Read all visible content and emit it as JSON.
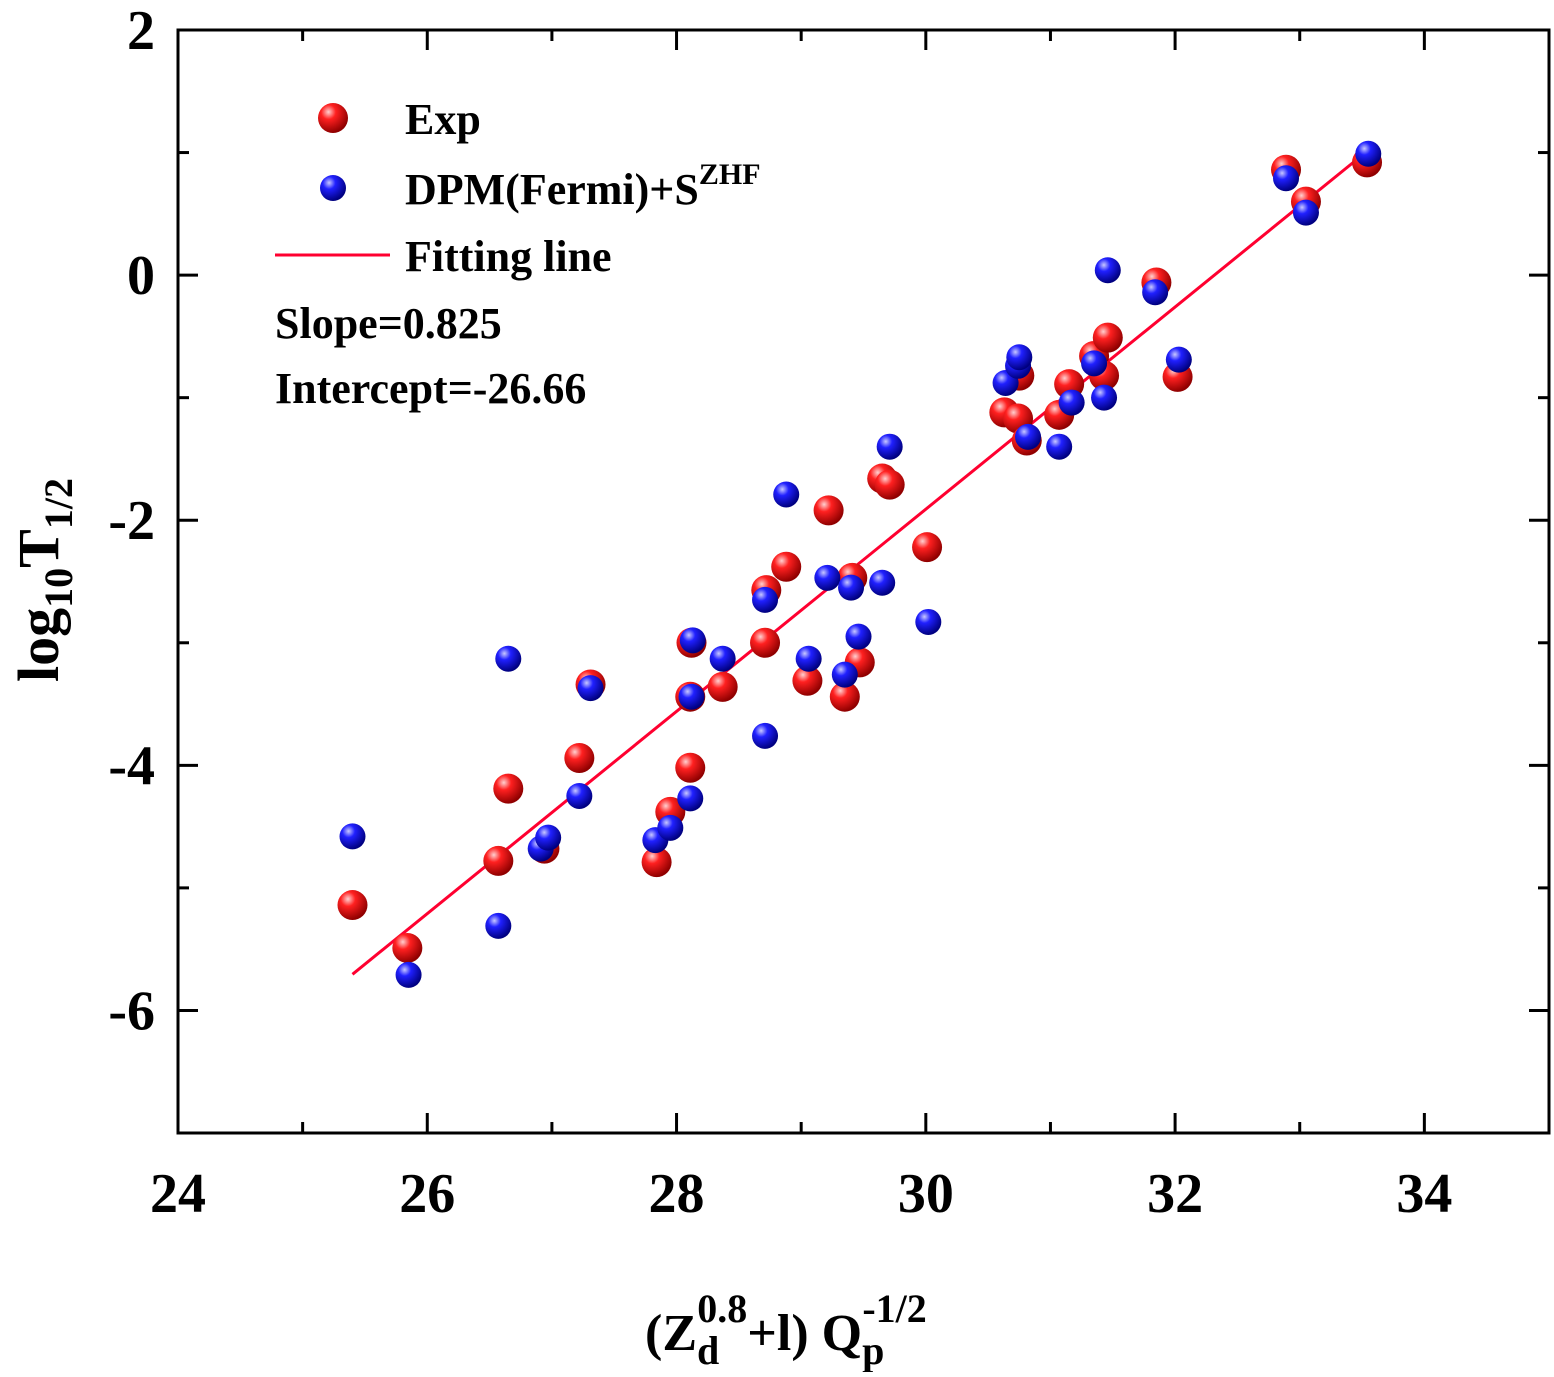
{
  "chart_data": {
    "type": "scatter",
    "xlabel": {
      "open": "(Z",
      "sub": "d",
      "sup": "0.8",
      "mid": "+l) Q",
      "sub2": "p",
      "sup2": "-1/2"
    },
    "ylabel": {
      "main": "log",
      "sub": "10",
      "main2": "T",
      "sub2": "1/2"
    },
    "xlim": [
      24,
      35
    ],
    "ylim": [
      -7,
      2
    ],
    "xticks": [
      "24",
      "26",
      "28",
      "30",
      "32",
      "34"
    ],
    "yticks": [
      "2",
      "0",
      "-2",
      "-4",
      "-6"
    ],
    "grid": false,
    "legend_placement": "top-left",
    "colors": {
      "exp": "#ff0000",
      "dpm": "#0000ff",
      "fit": "#ff0030"
    },
    "legend": {
      "exp": "Exp",
      "dpm": {
        "main": "DPM(Fermi)+S",
        "sup": "ZHF"
      },
      "fit": "Fitting line"
    },
    "annotations": {
      "slope": "Slope=0.825",
      "intercept": "Intercept=-26.66"
    },
    "fit": {
      "slope": 0.825,
      "intercept": -26.66,
      "x_range": [
        25.4,
        33.55
      ]
    },
    "series": [
      {
        "name": "Exp",
        "points": [
          [
            25.4,
            -5.14
          ],
          [
            25.84,
            -5.49
          ],
          [
            26.57,
            -4.78
          ],
          [
            26.65,
            -4.19
          ],
          [
            26.94,
            -4.68
          ],
          [
            27.22,
            -3.94
          ],
          [
            27.31,
            -3.34
          ],
          [
            27.84,
            -4.79
          ],
          [
            27.95,
            -4.38
          ],
          [
            28.11,
            -4.02
          ],
          [
            28.12,
            -3.0
          ],
          [
            28.11,
            -3.44
          ],
          [
            28.37,
            -3.36
          ],
          [
            28.71,
            -3.0
          ],
          [
            28.72,
            -2.57
          ],
          [
            28.88,
            -2.38
          ],
          [
            29.05,
            -3.31
          ],
          [
            29.22,
            -1.92
          ],
          [
            29.35,
            -3.44
          ],
          [
            29.41,
            -2.47
          ],
          [
            29.47,
            -3.16
          ],
          [
            29.65,
            -1.66
          ],
          [
            29.71,
            -1.71
          ],
          [
            30.01,
            -2.22
          ],
          [
            30.63,
            -1.12
          ],
          [
            30.74,
            -1.17
          ],
          [
            30.75,
            -0.82
          ],
          [
            30.81,
            -1.35
          ],
          [
            31.07,
            -1.14
          ],
          [
            31.15,
            -0.89
          ],
          [
            31.35,
            -0.66
          ],
          [
            31.43,
            -0.82
          ],
          [
            31.46,
            -0.51
          ],
          [
            31.85,
            -0.06
          ],
          [
            32.02,
            -0.83
          ],
          [
            32.89,
            0.86
          ],
          [
            33.05,
            0.6
          ],
          [
            33.54,
            0.92
          ]
        ]
      },
      {
        "name": "DPM(Fermi)+S^ZHF",
        "points": [
          [
            25.4,
            -4.58
          ],
          [
            25.85,
            -5.71
          ],
          [
            26.57,
            -5.31
          ],
          [
            26.65,
            -3.13
          ],
          [
            26.91,
            -4.68
          ],
          [
            26.97,
            -4.59
          ],
          [
            27.22,
            -4.25
          ],
          [
            27.31,
            -3.37
          ],
          [
            27.83,
            -4.61
          ],
          [
            27.95,
            -4.51
          ],
          [
            28.11,
            -4.27
          ],
          [
            28.13,
            -2.98
          ],
          [
            28.12,
            -3.44
          ],
          [
            28.37,
            -3.13
          ],
          [
            28.71,
            -3.76
          ],
          [
            28.71,
            -2.65
          ],
          [
            28.88,
            -1.79
          ],
          [
            29.06,
            -3.13
          ],
          [
            29.21,
            -2.47
          ],
          [
            29.35,
            -3.26
          ],
          [
            29.4,
            -2.55
          ],
          [
            29.46,
            -2.95
          ],
          [
            29.65,
            -2.51
          ],
          [
            29.71,
            -1.4
          ],
          [
            30.02,
            -2.83
          ],
          [
            30.64,
            -0.88
          ],
          [
            30.74,
            -0.74
          ],
          [
            30.75,
            -0.67
          ],
          [
            30.82,
            -1.32
          ],
          [
            31.07,
            -1.4
          ],
          [
            31.17,
            -1.04
          ],
          [
            31.35,
            -0.72
          ],
          [
            31.43,
            -1.0
          ],
          [
            31.46,
            0.04
          ],
          [
            31.84,
            -0.14
          ],
          [
            32.03,
            -0.69
          ],
          [
            32.89,
            0.79
          ],
          [
            33.05,
            0.51
          ],
          [
            33.55,
            0.99
          ]
        ]
      }
    ]
  }
}
